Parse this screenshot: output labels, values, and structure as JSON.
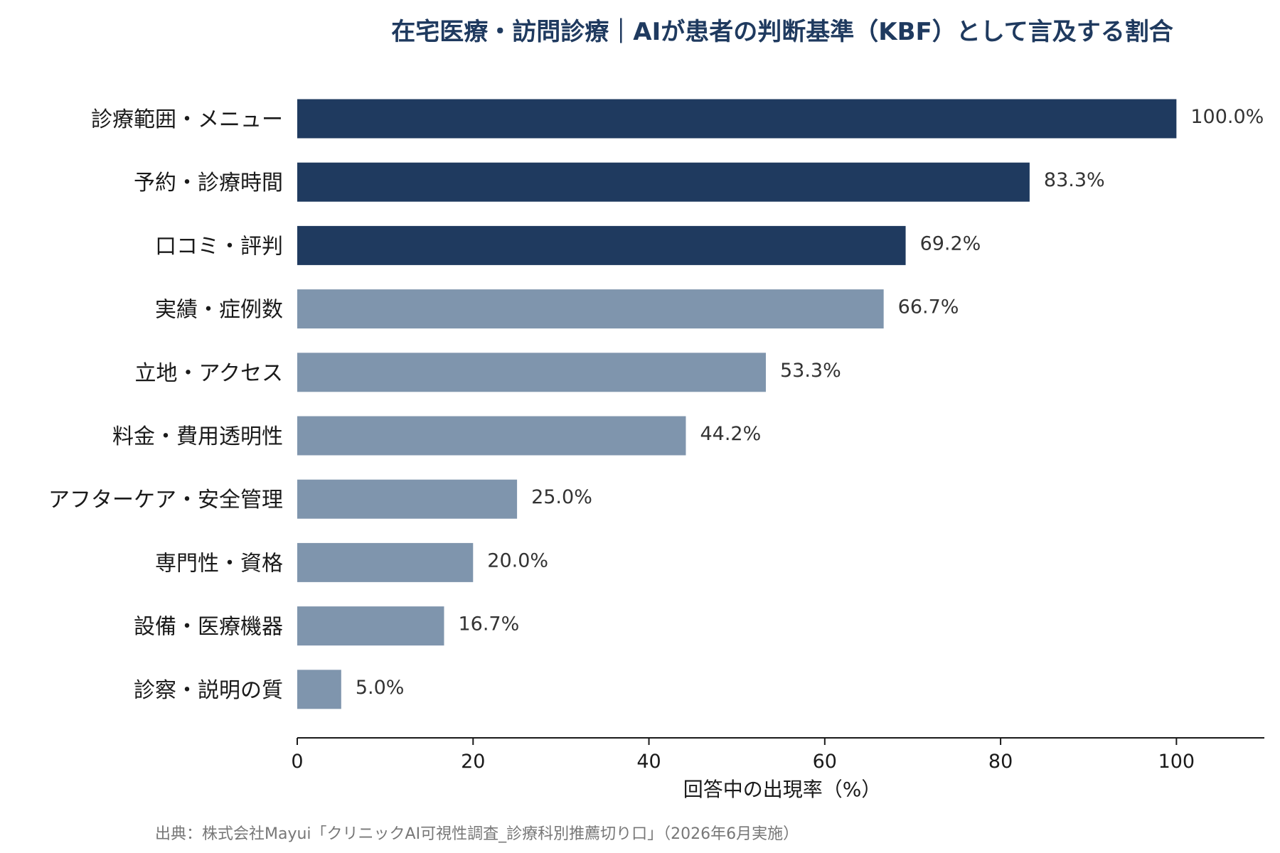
{
  "chart_data": {
    "type": "bar",
    "orientation": "horizontal",
    "title": "在宅医療・訪問診療｜AIが患者の判断基準（KBF）として言及する割合",
    "xlabel": "回答中の出現率（%）",
    "ylabel": "",
    "xlim": [
      0,
      110
    ],
    "xticks": [
      0,
      20,
      40,
      60,
      80,
      100
    ],
    "grid": false,
    "categories": [
      "診療範囲・メニュー",
      "予約・診療時間",
      "口コミ・評判",
      "実績・症例数",
      "立地・アクセス",
      "料金・費用透明性",
      "アフターケア・安全管理",
      "専門性・資格",
      "設備・医療機器",
      "診察・説明の質"
    ],
    "values": [
      100.0,
      83.3,
      69.2,
      66.7,
      53.3,
      44.2,
      25.0,
      20.0,
      16.7,
      5.0
    ],
    "value_labels": [
      "100.0%",
      "83.3%",
      "69.2%",
      "66.7%",
      "53.3%",
      "44.2%",
      "25.0%",
      "20.0%",
      "16.7%",
      "5.0%"
    ],
    "highlight_count": 3,
    "colors": {
      "highlight": "#1f3a5f",
      "normal": "#7f95ad",
      "title": "#1f3a5f",
      "axis": "#1a1a1a"
    },
    "source": "出典：株式会社Mayui「クリニックAI可視性調査_診療科別推薦切り口」（2026年6月実施）"
  }
}
